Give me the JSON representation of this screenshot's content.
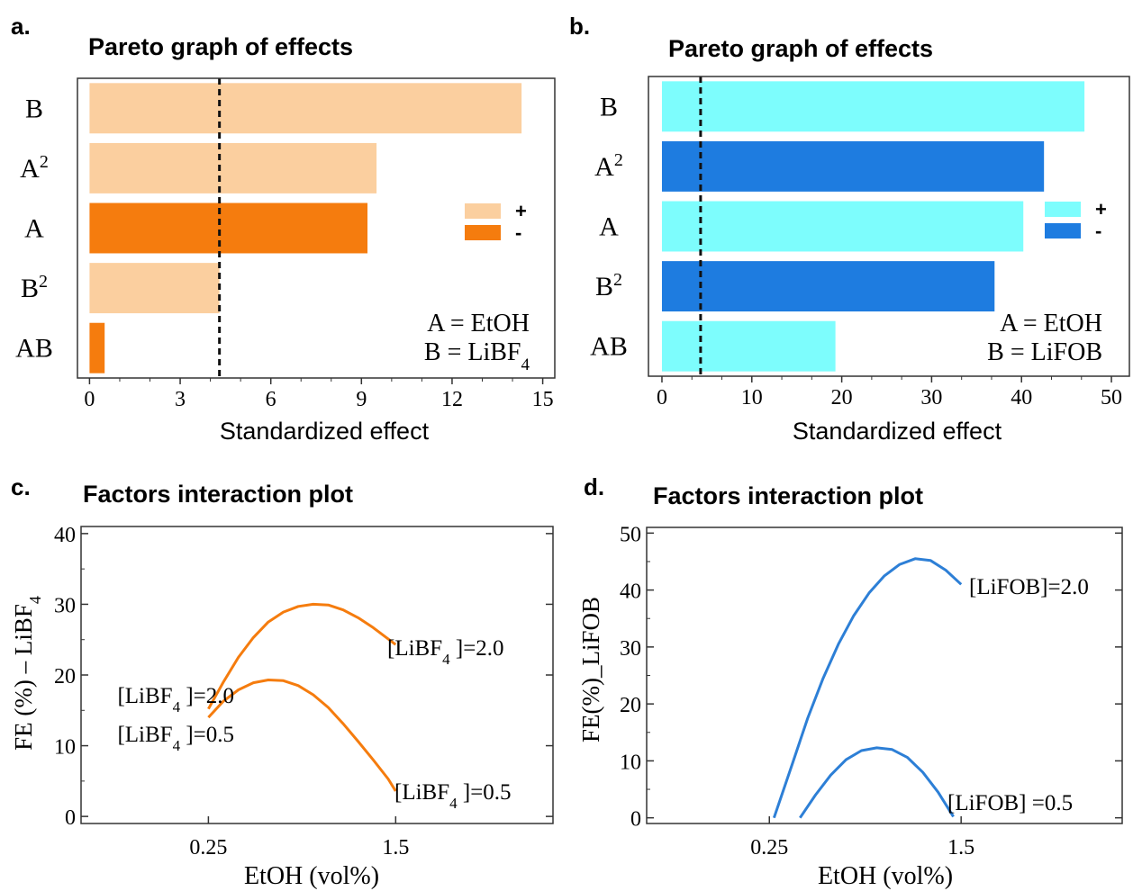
{
  "panels": [
    {
      "letter": "a.",
      "chart_data": {
        "type": "bar",
        "title": "Pareto graph of effects",
        "xlabel": "Standardized effect",
        "categories": [
          "B",
          "A2",
          "A",
          "B2",
          "AB"
        ],
        "values": [
          14.3,
          9.5,
          9.2,
          4.3,
          0.5
        ],
        "signs": [
          "+",
          "+",
          "-",
          "+",
          "-"
        ],
        "xlim": [
          -0.4,
          15.4
        ],
        "xticks": [
          "0",
          "3",
          "6",
          "9",
          "12",
          "15"
        ],
        "xtick_values": [
          0,
          3,
          6,
          9,
          12,
          15
        ],
        "threshold": 4.3,
        "legend": [
          {
            "label": "+",
            "color": "#fbcf9f"
          },
          {
            "label": "-",
            "color": "#f57c0e"
          }
        ],
        "legend_position": "right",
        "notes": [
          "A = EtOH",
          "B = LiBF4"
        ],
        "colors": {
          "positive": "#fbcf9f",
          "negative": "#f57c0e"
        }
      }
    },
    {
      "letter": "b.",
      "chart_data": {
        "type": "bar",
        "title": "Pareto graph of effects",
        "xlabel": "Standardized effect",
        "categories": [
          "B",
          "A2",
          "A",
          "B2",
          "AB"
        ],
        "values": [
          47.0,
          42.5,
          40.2,
          37.0,
          19.3
        ],
        "signs": [
          "+",
          "-",
          "+",
          "-",
          "+"
        ],
        "xlim": [
          -1.5,
          52
        ],
        "xticks": [
          "0",
          "10",
          "20",
          "30",
          "40",
          "50"
        ],
        "xtick_values": [
          0,
          10,
          20,
          30,
          40,
          50
        ],
        "threshold": 4.3,
        "legend": [
          {
            "label": "+",
            "color": "#7dfdfd"
          },
          {
            "label": "-",
            "color": "#1e7ce0"
          }
        ],
        "legend_position": "right",
        "notes": [
          "A = EtOH",
          "B = LiFOB"
        ],
        "colors": {
          "positive": "#7dfdfd",
          "negative": "#1e7ce0"
        }
      }
    },
    {
      "letter": "c.",
      "chart_data": {
        "type": "line",
        "title": "Factors interaction plot",
        "xlabel": "EtOH (vol%)",
        "ylabel": "FE (%) – LiBF4",
        "xlim": [
          -0.6,
          2.55
        ],
        "ylim": [
          -1,
          41
        ],
        "xticks": [
          "0.25",
          "1.5"
        ],
        "xtick_values": [
          0.25,
          1.5
        ],
        "yticks": [
          "0",
          "10",
          "20",
          "30",
          "40"
        ],
        "ytick_values": [
          0,
          10,
          20,
          30,
          40
        ],
        "color": "#f57c0e",
        "series": [
          {
            "name": "[LiBF4 ]=2.0",
            "x": [
              0.25,
              0.35,
              0.45,
              0.55,
              0.65,
              0.75,
              0.85,
              0.95,
              1.05,
              1.15,
              1.25,
              1.35,
              1.45,
              1.5
            ],
            "y": [
              15.2,
              19.0,
              22.5,
              25.3,
              27.5,
              28.9,
              29.7,
              30.0,
              29.9,
              29.2,
              28.1,
              26.7,
              25.1,
              24.3
            ]
          },
          {
            "name": "[LiBF4 ]=0.5",
            "x": [
              0.25,
              0.35,
              0.45,
              0.55,
              0.65,
              0.75,
              0.85,
              0.95,
              1.05,
              1.15,
              1.25,
              1.35,
              1.45,
              1.5
            ],
            "y": [
              14.0,
              16.3,
              17.9,
              18.9,
              19.3,
              19.2,
              18.5,
              17.2,
              15.4,
              13.1,
              10.6,
              8.0,
              5.3,
              3.6
            ]
          }
        ],
        "labels": [
          {
            "series": 0,
            "at": "start",
            "text": "[LiBF4 ]=2.0"
          },
          {
            "series": 0,
            "at": "end",
            "text": "[LiBF4 ]=2.0"
          },
          {
            "series": 1,
            "at": "start",
            "text": "[LiBF4 ]=0.5"
          },
          {
            "series": 1,
            "at": "end",
            "text": "[LiBF4 ]=0.5"
          }
        ]
      }
    },
    {
      "letter": "d.",
      "chart_data": {
        "type": "line",
        "title": "Factors interaction plot",
        "xlabel": "EtOH (vol%)",
        "ylabel": "FE(%)_LiFOB",
        "xlim": [
          -0.55,
          2.55
        ],
        "ylim": [
          -1,
          51
        ],
        "xticks": [
          "0.25",
          "1.5"
        ],
        "xtick_values": [
          0.25,
          1.5
        ],
        "yticks": [
          "0",
          "10",
          "20",
          "30",
          "40",
          "50"
        ],
        "ytick_values": [
          0,
          10,
          20,
          30,
          40,
          50
        ],
        "color": "#2d7fd6",
        "series": [
          {
            "name": "[LiFOB]=2.0",
            "x": [
              0.28,
              0.4,
              0.5,
              0.6,
              0.7,
              0.8,
              0.9,
              1.0,
              1.1,
              1.2,
              1.3,
              1.4,
              1.5
            ],
            "y": [
              0.0,
              9.5,
              17.5,
              24.5,
              30.5,
              35.5,
              39.5,
              42.5,
              44.5,
              45.5,
              45.2,
              43.5,
              41.0
            ]
          },
          {
            "name": "[LiFOB] =0.5",
            "x": [
              0.45,
              0.55,
              0.65,
              0.75,
              0.85,
              0.95,
              1.05,
              1.15,
              1.25,
              1.35,
              1.45
            ],
            "y": [
              0.0,
              4.0,
              7.5,
              10.2,
              11.8,
              12.3,
              12.0,
              10.6,
              8.0,
              4.5,
              0.2
            ]
          }
        ],
        "labels": [
          {
            "series": 0,
            "at": "end",
            "text": "[LiFOB]=2.0"
          },
          {
            "series": 1,
            "at": "end",
            "text": "[LiFOB] =0.5"
          }
        ]
      }
    }
  ]
}
